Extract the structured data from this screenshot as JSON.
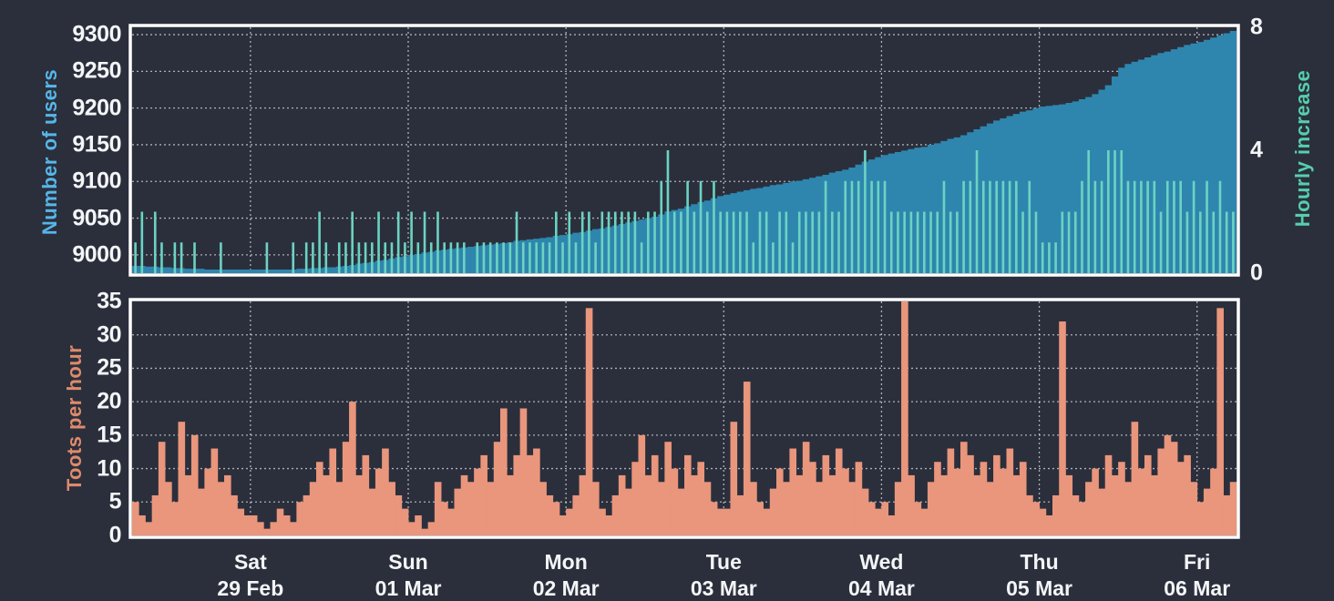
{
  "colors": {
    "background": "#2b2f3c",
    "plot_border": "#ffffff",
    "gridline": "rgba(255,255,255,0.62)",
    "tick_text": "#f4f5f7",
    "users_fill": "#2e86ae",
    "increase_bar": "#6bd3c2",
    "toots_bar": "#e9967c",
    "users_title": "#56b6e8",
    "increase_title": "#55cfad",
    "toots_title": "#de8a6b"
  },
  "x_axis": {
    "points_per_series": 168,
    "day_tick_hours": [
      18,
      42,
      66,
      90,
      114,
      138,
      162
    ],
    "tick_labels": [
      {
        "day": "Sat",
        "date": "29 Feb"
      },
      {
        "day": "Sun",
        "date": "01 Mar"
      },
      {
        "day": "Mon",
        "date": "02 Mar"
      },
      {
        "day": "Tue",
        "date": "03 Mar"
      },
      {
        "day": "Wed",
        "date": "04 Mar"
      },
      {
        "day": "Thu",
        "date": "05 Mar"
      },
      {
        "day": "Fri",
        "date": "06 Mar"
      }
    ]
  },
  "chart_data": [
    {
      "type": "area",
      "title": "",
      "legend": "none",
      "grid": true,
      "left_axis": {
        "label": "Number of users",
        "ticks": [
          9300,
          9250,
          9200,
          9150,
          9100,
          9050,
          9000
        ],
        "range": [
          8975,
          9310
        ]
      },
      "right_axis": {
        "label": "Hourly increase",
        "ticks": [
          8,
          4,
          0
        ],
        "range": [
          0,
          8
        ]
      },
      "series": [
        {
          "name": "Number of users",
          "type": "area",
          "axis": "left",
          "values": [
            8985,
            8985,
            8984,
            8984,
            8983,
            8983,
            8982,
            8982,
            8981,
            8981,
            8981,
            8980,
            8980,
            8980,
            8980,
            8980,
            8980,
            8980,
            8980,
            8980,
            8980,
            8980,
            8980,
            8980,
            8980,
            8981,
            8981,
            8982,
            8982,
            8983,
            8983,
            8984,
            8985,
            8986,
            8988,
            8989,
            8990,
            8992,
            8993,
            8995,
            8997,
            8998,
            9000,
            9001,
            9003,
            9004,
            9006,
            9007,
            9008,
            9009,
            9010,
            9011,
            9012,
            9013,
            9014,
            9015,
            9016,
            9017,
            9019,
            9020,
            9021,
            9022,
            9023,
            9024,
            9026,
            9027,
            9028,
            9030,
            9031,
            9033,
            9035,
            9036,
            9038,
            9040,
            9042,
            9044,
            9046,
            9048,
            9050,
            9052,
            9055,
            9059,
            9061,
            9063,
            9066,
            9069,
            9072,
            9074,
            9077,
            9080,
            9082,
            9084,
            9086,
            9088,
            9090,
            9091,
            9093,
            9095,
            9096,
            9098,
            9100,
            9101,
            9103,
            9105,
            9107,
            9109,
            9112,
            9114,
            9116,
            9119,
            9123,
            9127,
            9130,
            9133,
            9136,
            9138,
            9140,
            9142,
            9144,
            9146,
            9147,
            9150,
            9152,
            9155,
            9158,
            9160,
            9163,
            9167,
            9171,
            9175,
            9179,
            9183,
            9186,
            9189,
            9192,
            9195,
            9197,
            9200,
            9202,
            9203,
            9204,
            9205,
            9207,
            9209,
            9212,
            9215,
            9219,
            9225,
            9231,
            9243,
            9255,
            9260,
            9263,
            9266,
            9269,
            9272,
            9275,
            9277,
            9280,
            9283,
            9286,
            9288,
            9290,
            9293,
            9296,
            9299,
            9302,
            9305
          ]
        },
        {
          "name": "Hourly increase",
          "type": "bar",
          "axis": "right",
          "values": [
            1,
            2,
            0,
            2,
            1,
            0,
            1,
            1,
            0,
            1,
            0,
            0,
            0,
            1,
            0,
            0,
            0,
            0,
            0,
            0,
            1,
            0,
            0,
            0,
            1,
            0,
            1,
            1,
            2,
            1,
            0,
            1,
            1,
            2,
            1,
            1,
            1,
            2,
            1,
            1,
            2,
            1,
            2,
            1,
            2,
            1,
            2,
            1,
            1,
            1,
            1,
            0,
            1,
            1,
            1,
            1,
            1,
            1,
            2,
            1,
            1,
            1,
            1,
            1,
            2,
            1,
            2,
            1,
            2,
            2,
            1,
            2,
            2,
            2,
            2,
            2,
            2,
            1,
            2,
            2,
            3,
            4,
            2,
            2,
            3,
            2,
            3,
            2,
            3,
            2,
            2,
            2,
            2,
            2,
            1,
            2,
            2,
            1,
            2,
            2,
            1,
            2,
            2,
            2,
            2,
            3,
            2,
            2,
            3,
            3,
            3,
            4,
            3,
            3,
            3,
            2,
            2,
            2,
            2,
            2,
            2,
            2,
            2,
            3,
            2,
            2,
            3,
            3,
            4,
            3,
            3,
            3,
            3,
            3,
            3,
            2,
            3,
            2,
            1,
            1,
            1,
            2,
            2,
            2,
            3,
            4,
            3,
            3,
            4,
            4,
            4,
            3,
            3,
            3,
            3,
            3,
            2,
            3,
            3,
            3,
            2,
            3,
            2,
            3,
            2,
            3,
            2,
            2
          ]
        }
      ]
    },
    {
      "type": "bar",
      "title": "",
      "legend": "none",
      "grid": true,
      "left_axis": {
        "label": "Toots per hour",
        "ticks": [
          35,
          30,
          25,
          20,
          15,
          10,
          5,
          0
        ],
        "range": [
          0,
          35
        ]
      },
      "series": [
        {
          "name": "Toots per hour",
          "type": "bar",
          "axis": "left",
          "values": [
            5,
            3,
            2,
            6,
            14,
            8,
            5,
            17,
            9,
            15,
            7,
            10,
            13,
            8,
            9,
            6,
            4,
            3,
            3,
            2,
            1,
            2,
            4,
            3,
            2,
            5,
            6,
            8,
            11,
            9,
            13,
            8,
            14,
            20,
            9,
            12,
            7,
            10,
            13,
            8,
            6,
            4,
            2,
            3,
            1,
            2,
            8,
            5,
            4,
            7,
            9,
            8,
            10,
            12,
            8,
            14,
            19,
            9,
            12,
            19,
            12,
            13,
            8,
            6,
            5,
            3,
            4,
            6,
            9,
            34,
            8,
            4,
            3,
            6,
            9,
            7,
            11,
            15,
            9,
            12,
            8,
            14,
            10,
            7,
            12,
            9,
            11,
            8,
            5,
            4,
            4,
            17,
            6,
            23,
            8,
            5,
            4,
            7,
            10,
            8,
            13,
            9,
            14,
            11,
            8,
            12,
            9,
            13,
            10,
            8,
            11,
            7,
            5,
            4,
            5,
            3,
            8,
            35,
            9,
            5,
            4,
            8,
            11,
            9,
            13,
            10,
            14,
            12,
            9,
            11,
            8,
            12,
            10,
            13,
            9,
            11,
            6,
            5,
            4,
            3,
            6,
            32,
            9,
            6,
            5,
            8,
            10,
            7,
            12,
            9,
            11,
            8,
            17,
            10,
            12,
            9,
            13,
            15,
            14,
            11,
            12,
            8,
            5,
            7,
            10,
            34,
            6,
            8
          ]
        }
      ]
    }
  ]
}
